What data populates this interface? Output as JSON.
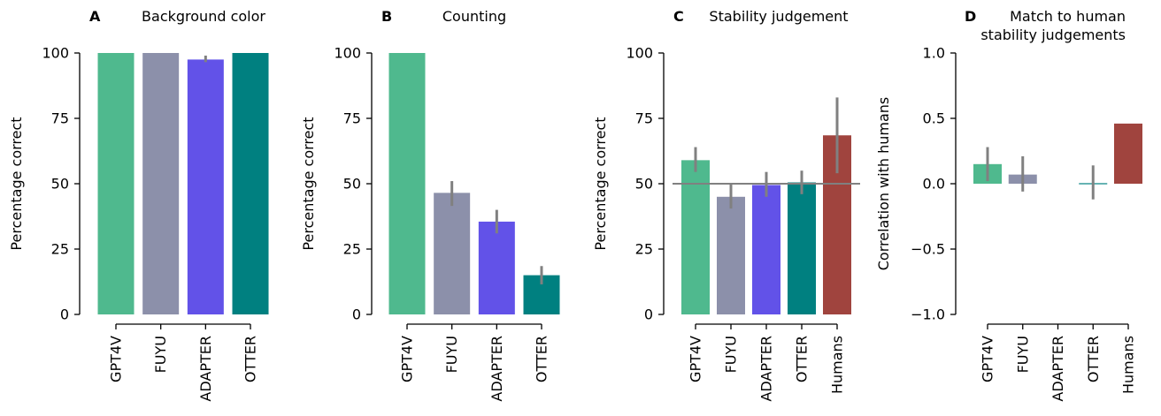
{
  "colors": {
    "GPT4V": "#4fb98e",
    "FUYU": "#8c90aa",
    "ADAPTER": "#6252e8",
    "OTTER": "#008080",
    "Humans": "#a0443e",
    "errorbar": "#808080",
    "chance_line": "#808080"
  },
  "chart_data": [
    {
      "type": "bar",
      "letter": "A",
      "title": [
        "Background color"
      ],
      "categories": [
        "GPT4V",
        "FUYU",
        "ADAPTER",
        "OTTER"
      ],
      "values": [
        100,
        100,
        97.5,
        100
      ],
      "errors": [
        [
          100,
          100
        ],
        [
          100,
          100
        ],
        [
          96.5,
          99
        ],
        [
          100,
          100
        ]
      ],
      "ylabel": "Percentage correct",
      "ylim": [
        0,
        100
      ],
      "yticks": [
        "0",
        "25",
        "50",
        "75",
        "100"
      ],
      "grid": false
    },
    {
      "type": "bar",
      "letter": "B",
      "title": [
        "Counting"
      ],
      "categories": [
        "GPT4V",
        "FUYU",
        "ADAPTER",
        "OTTER"
      ],
      "values": [
        100,
        46.5,
        35.5,
        15
      ],
      "errors": [
        [
          100,
          100
        ],
        [
          41.5,
          51
        ],
        [
          31,
          40
        ],
        [
          11.5,
          18.5
        ]
      ],
      "ylabel": "Percentage correct",
      "ylim": [
        0,
        100
      ],
      "yticks": [
        "0",
        "25",
        "50",
        "75",
        "100"
      ],
      "grid": false
    },
    {
      "type": "bar",
      "letter": "C",
      "title": [
        "Stability judgement"
      ],
      "categories": [
        "GPT4V",
        "FUYU",
        "ADAPTER",
        "OTTER",
        "Humans"
      ],
      "values": [
        59,
        45,
        49.5,
        50.5,
        68.5
      ],
      "errors": [
        [
          54.5,
          64
        ],
        [
          40.5,
          50
        ],
        [
          45,
          54.5
        ],
        [
          46,
          55
        ],
        [
          54,
          83
        ]
      ],
      "ylabel": "Percentage correct",
      "ylim": [
        0,
        100
      ],
      "yticks": [
        "0",
        "25",
        "50",
        "75",
        "100"
      ],
      "hline": 50,
      "grid": false
    },
    {
      "type": "bar",
      "letter": "D",
      "title": [
        "Match to human",
        "stability judgements"
      ],
      "categories": [
        "GPT4V",
        "FUYU",
        "ADAPTER",
        "OTTER",
        "Humans"
      ],
      "values": [
        0.15,
        0.07,
        null,
        0.005,
        0.46
      ],
      "errors": [
        [
          0.02,
          0.28
        ],
        [
          -0.06,
          0.21
        ],
        null,
        [
          -0.12,
          0.14
        ],
        [
          0.46,
          0.46
        ]
      ],
      "ylabel": "Correlation with humans",
      "ylim": [
        -1.0,
        1.0
      ],
      "yticks": [
        "−1.0",
        "−0.5",
        "0.0",
        "0.5",
        "1.0"
      ],
      "grid": false
    }
  ]
}
